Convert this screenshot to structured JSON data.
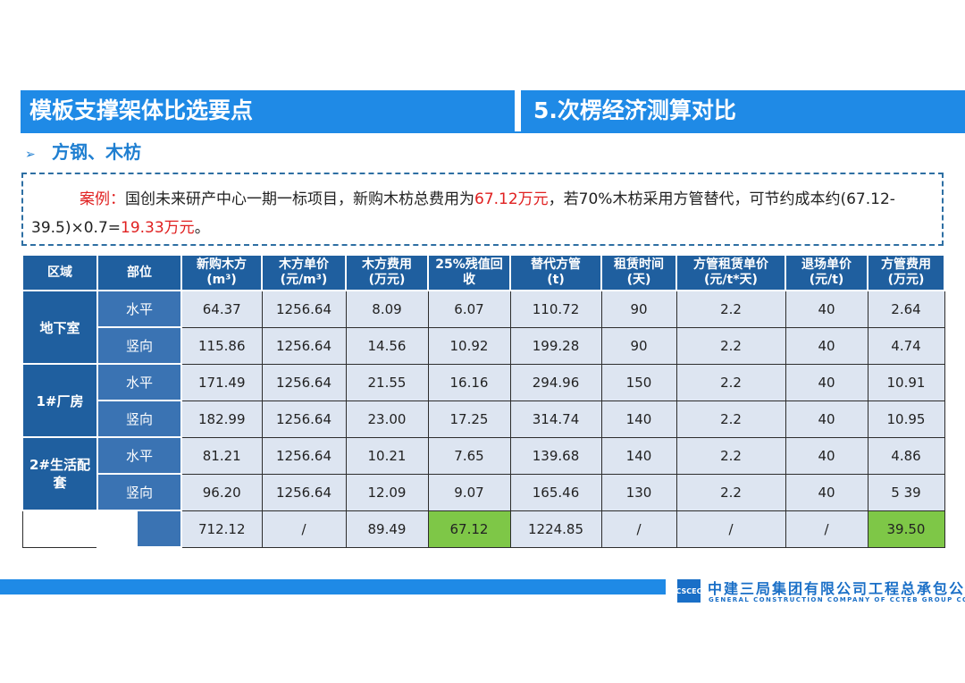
{
  "header": {
    "left_title": "模板支撑架体比选要点",
    "right_title": "5.次楞经济测算对比"
  },
  "subtitle": {
    "arrow_icon": "➢",
    "text": "方钢、木枋"
  },
  "case": {
    "label": "案例：",
    "text1": "国创未来研产中心一期一标项目，新购木枋总费用为",
    "value1": "67.12万元",
    "text2": "，若70%木枋采用方管替代，可节约成本约(67.12-39.5)×0.7=",
    "value2": "19.33万元",
    "text3": "。"
  },
  "table": {
    "headers": [
      "区域",
      "部位",
      "新购木方\n(m³)",
      "木方单价\n(元/m³)",
      "木方费用\n(万元)",
      "25%残值回\n收",
      "替代方管\n(t)",
      "租赁时间\n(天)",
      "方管租赁单价\n(元/t*天)",
      "退场单价\n(元/t)",
      "方管费用\n(万元)"
    ],
    "groups": [
      {
        "area": "地下室",
        "rows": [
          {
            "part": "水平",
            "vals": [
              "64.37",
              "1256.64",
              "8.09",
              "6.07",
              "110.72",
              "90",
              "2.2",
              "40",
              "2.64"
            ]
          },
          {
            "part": "竖向",
            "vals": [
              "115.86",
              "1256.64",
              "14.56",
              "10.92",
              "199.28",
              "90",
              "2.2",
              "40",
              "4.74"
            ]
          }
        ]
      },
      {
        "area": "1#厂房",
        "rows": [
          {
            "part": "水平",
            "vals": [
              "171.49",
              "1256.64",
              "21.55",
              "16.16",
              "294.96",
              "150",
              "2.2",
              "40",
              "10.91"
            ]
          },
          {
            "part": "竖向",
            "vals": [
              "182.99",
              "1256.64",
              "23.00",
              "17.25",
              "314.74",
              "140",
              "2.2",
              "40",
              "10.95"
            ]
          }
        ]
      },
      {
        "area": "2#生活配套",
        "rows": [
          {
            "part": "水平",
            "vals": [
              "81.21",
              "1256.64",
              "10.21",
              "7.65",
              "139.68",
              "140",
              "2.2",
              "40",
              "4.86"
            ]
          },
          {
            "part": "竖向",
            "vals": [
              "96.20",
              "1256.64",
              "12.09",
              "9.07",
              "165.46",
              "130",
              "2.2",
              "40",
              "5 39"
            ]
          }
        ]
      }
    ],
    "total": [
      "712.12",
      "/",
      "89.49",
      "67.12",
      "1224.85",
      "/",
      "/",
      "/",
      "39.50"
    ]
  },
  "footer": {
    "logo_text": "CSCEC",
    "company_cn": "中建三局集团有限公司工程总承包公司",
    "company_en": "GENERAL CONSTRUCTION COMPANY OF CCTEB GROUP CO.,LTD"
  },
  "colors": {
    "accent": "#1f8ae6",
    "table_header": "#1f5f9f",
    "cell_bg": "#dde5f1",
    "highlight": "#7ec747",
    "red_text": "#e02020"
  }
}
